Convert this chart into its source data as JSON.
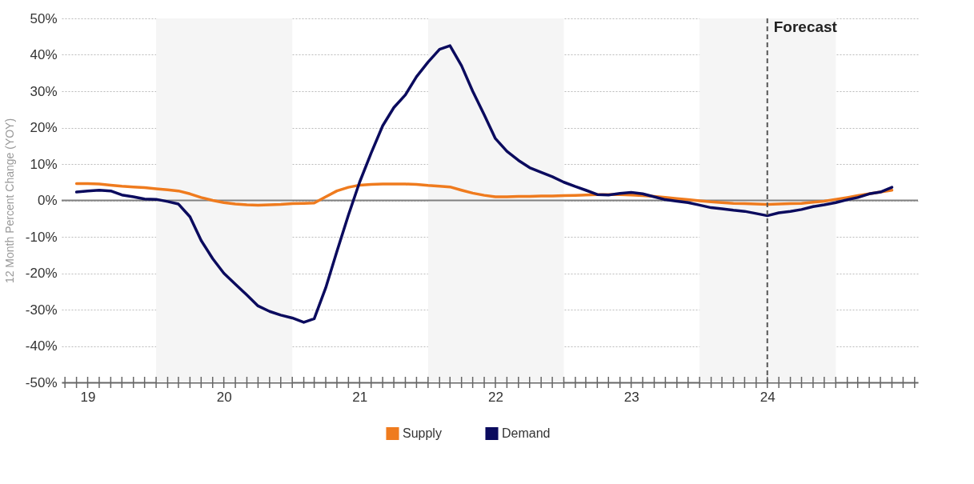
{
  "chart_data": {
    "type": "line",
    "ylabel": "12 Month Percent Change (YOY)",
    "x": [
      "2019-06",
      "2019-07",
      "2019-08",
      "2019-09",
      "2019-10",
      "2019-11",
      "2019-12",
      "2020-01",
      "2020-02",
      "2020-03",
      "2020-04",
      "2020-05",
      "2020-06",
      "2020-07",
      "2020-08",
      "2020-09",
      "2020-10",
      "2020-11",
      "2020-12",
      "2021-01",
      "2021-02",
      "2021-03",
      "2021-04",
      "2021-05",
      "2021-06",
      "2021-07",
      "2021-08",
      "2021-09",
      "2021-10",
      "2021-11",
      "2021-12",
      "2022-01",
      "2022-02",
      "2022-03",
      "2022-04",
      "2022-05",
      "2022-06",
      "2022-07",
      "2022-08",
      "2022-09",
      "2022-10",
      "2022-11",
      "2022-12",
      "2023-01",
      "2023-02",
      "2023-03",
      "2023-04",
      "2023-05",
      "2023-06",
      "2023-07",
      "2023-08",
      "2023-09",
      "2023-10",
      "2023-11",
      "2023-12",
      "2024-01",
      "2024-02",
      "2024-03",
      "2024-04",
      "2024-05",
      "2024-06",
      "2024-07",
      "2024-08",
      "2024-09",
      "2024-10",
      "2024-11",
      "2024-12",
      "2025-01",
      "2025-02",
      "2025-03",
      "2025-04",
      "2025-05",
      "2025-06"
    ],
    "series": [
      {
        "name": "Supply",
        "color": "#ef7b1e",
        "values": [
          4.6,
          4.6,
          4.5,
          4.2,
          3.9,
          3.7,
          3.5,
          3.2,
          2.9,
          2.6,
          1.8,
          0.8,
          0.0,
          -0.6,
          -1.0,
          -1.2,
          -1.3,
          -1.2,
          -1.1,
          -0.9,
          -0.8,
          -0.7,
          1.0,
          2.6,
          3.6,
          4.2,
          4.4,
          4.5,
          4.5,
          4.5,
          4.4,
          4.1,
          3.9,
          3.7,
          2.8,
          2.0,
          1.4,
          1.0,
          1.0,
          1.1,
          1.1,
          1.2,
          1.2,
          1.3,
          1.4,
          1.5,
          1.6,
          1.6,
          1.6,
          1.5,
          1.3,
          1.1,
          0.8,
          0.5,
          0.2,
          -0.1,
          -0.4,
          -0.6,
          -0.8,
          -0.9,
          -1.0,
          -1.1,
          -1.0,
          -0.9,
          -0.8,
          -0.5,
          -0.2,
          0.3,
          0.8,
          1.3,
          1.8,
          2.3,
          2.8
        ]
      },
      {
        "name": "Demand",
        "color": "#0b0b5e",
        "values": [
          2.3,
          2.6,
          2.8,
          2.6,
          1.5,
          1.0,
          0.4,
          0.3,
          -0.3,
          -1.0,
          -4.5,
          -11,
          -16,
          -20,
          -23,
          -26,
          -29,
          -30.5,
          -31.5,
          -32.3,
          -33.5,
          -32.5,
          -24,
          -14,
          -4,
          5,
          13,
          20.5,
          25.5,
          29,
          34,
          38,
          41.5,
          42.5,
          37,
          30,
          23.5,
          17,
          13.5,
          11,
          9,
          7.7,
          6.5,
          5,
          3.8,
          2.8,
          1.6,
          1.5,
          1.9,
          2.2,
          1.8,
          1.0,
          0.2,
          -0.2,
          -0.6,
          -1.3,
          -2.0,
          -2.3,
          -2.7,
          -3.0,
          -3.6,
          -4.2,
          -3.4,
          -3.0,
          -2.5,
          -1.7,
          -1.2,
          -0.6,
          0.2,
          0.8,
          1.8,
          2.3,
          3.6
        ]
      }
    ],
    "xlim": [
      "2019-04-22",
      "2025-08-10"
    ],
    "xticks": [
      {
        "value": "2019-05-01",
        "label": null
      },
      {
        "value": "2019-06-01",
        "label": null
      },
      {
        "value": "2019-07-01",
        "label": "19"
      },
      {
        "value": "2019-08-01",
        "label": null
      },
      {
        "value": "2019-09-01",
        "label": null
      },
      {
        "value": "2019-10-01",
        "label": null
      },
      {
        "value": "2019-11-01",
        "label": null
      },
      {
        "value": "2019-12-01",
        "label": null
      },
      {
        "value": "2020-01-01",
        "label": null
      },
      {
        "value": "2020-02-01",
        "label": null
      },
      {
        "value": "2020-03-01",
        "label": null
      },
      {
        "value": "2020-04-01",
        "label": null
      },
      {
        "value": "2020-05-01",
        "label": null
      },
      {
        "value": "2020-06-01",
        "label": null
      },
      {
        "value": "2020-07-01",
        "label": "20"
      },
      {
        "value": "2020-08-01",
        "label": null
      },
      {
        "value": "2020-09-01",
        "label": null
      },
      {
        "value": "2020-10-01",
        "label": null
      },
      {
        "value": "2020-11-01",
        "label": null
      },
      {
        "value": "2020-12-01",
        "label": null
      },
      {
        "value": "2021-01-01",
        "label": null
      },
      {
        "value": "2021-02-01",
        "label": null
      },
      {
        "value": "2021-03-01",
        "label": null
      },
      {
        "value": "2021-04-01",
        "label": null
      },
      {
        "value": "2021-05-01",
        "label": null
      },
      {
        "value": "2021-06-01",
        "label": null
      },
      {
        "value": "2021-07-01",
        "label": "21"
      },
      {
        "value": "2021-08-01",
        "label": null
      },
      {
        "value": "2021-09-01",
        "label": null
      },
      {
        "value": "2021-10-01",
        "label": null
      },
      {
        "value": "2021-11-01",
        "label": null
      },
      {
        "value": "2021-12-01",
        "label": null
      },
      {
        "value": "2022-01-01",
        "label": null
      },
      {
        "value": "2022-02-01",
        "label": null
      },
      {
        "value": "2022-03-01",
        "label": null
      },
      {
        "value": "2022-04-01",
        "label": null
      },
      {
        "value": "2022-05-01",
        "label": null
      },
      {
        "value": "2022-06-01",
        "label": null
      },
      {
        "value": "2022-07-01",
        "label": "22"
      },
      {
        "value": "2022-08-01",
        "label": null
      },
      {
        "value": "2022-09-01",
        "label": null
      },
      {
        "value": "2022-10-01",
        "label": null
      },
      {
        "value": "2022-11-01",
        "label": null
      },
      {
        "value": "2022-12-01",
        "label": null
      },
      {
        "value": "2023-01-01",
        "label": null
      },
      {
        "value": "2023-02-01",
        "label": null
      },
      {
        "value": "2023-03-01",
        "label": null
      },
      {
        "value": "2023-04-01",
        "label": null
      },
      {
        "value": "2023-05-01",
        "label": null
      },
      {
        "value": "2023-06-01",
        "label": null
      },
      {
        "value": "2023-07-01",
        "label": "23"
      },
      {
        "value": "2023-08-01",
        "label": null
      },
      {
        "value": "2023-09-01",
        "label": null
      },
      {
        "value": "2023-10-01",
        "label": null
      },
      {
        "value": "2023-11-01",
        "label": null
      },
      {
        "value": "2023-12-01",
        "label": null
      },
      {
        "value": "2024-01-01",
        "label": null
      },
      {
        "value": "2024-02-01",
        "label": null
      },
      {
        "value": "2024-03-01",
        "label": null
      },
      {
        "value": "2024-04-01",
        "label": null
      },
      {
        "value": "2024-05-01",
        "label": null
      },
      {
        "value": "2024-06-01",
        "label": null
      },
      {
        "value": "2024-07-01",
        "label": "24"
      },
      {
        "value": "2024-08-01",
        "label": null
      },
      {
        "value": "2024-09-01",
        "label": null
      },
      {
        "value": "2024-10-01",
        "label": null
      },
      {
        "value": "2024-11-01",
        "label": null
      },
      {
        "value": "2024-12-01",
        "label": null
      },
      {
        "value": "2025-01-01",
        "label": null
      },
      {
        "value": "2025-02-01",
        "label": null
      },
      {
        "value": "2025-03-01",
        "label": null
      },
      {
        "value": "2025-04-01",
        "label": null
      },
      {
        "value": "2025-05-01",
        "label": null
      },
      {
        "value": "2025-06-01",
        "label": null
      },
      {
        "value": "2025-07-01",
        "label": null
      },
      {
        "value": "2025-08-01",
        "label": null
      }
    ],
    "ylim": [
      -50,
      50
    ],
    "yticks": [
      {
        "value": -50,
        "label": "-50%"
      },
      {
        "value": -40,
        "label": "-40%"
      },
      {
        "value": -30,
        "label": "-30%"
      },
      {
        "value": -20,
        "label": "-20%"
      },
      {
        "value": -10,
        "label": "-10%"
      },
      {
        "value": 0,
        "label": "0%"
      },
      {
        "value": 10,
        "label": "10%"
      },
      {
        "value": 20,
        "label": "20%"
      },
      {
        "value": 30,
        "label": "30%"
      },
      {
        "value": 40,
        "label": "40%"
      },
      {
        "value": 50,
        "label": "50%"
      }
    ],
    "bands": [
      {
        "axis": "x",
        "from": "2020-01-01",
        "to": "2021-01-01",
        "color": "#f5f5f5"
      },
      {
        "axis": "x",
        "from": "2022-01-01",
        "to": "2023-01-01",
        "color": "#f5f5f5"
      },
      {
        "axis": "x",
        "from": "2024-01-01",
        "to": "2025-01-01",
        "color": "#f5f5f5"
      }
    ],
    "ref_lines": [
      {
        "axis": "y",
        "value": 0,
        "color": "#808080",
        "line_style": "solid"
      },
      {
        "axis": "x",
        "value": "2024-07-01",
        "label": "Forecast",
        "color": "#555555",
        "line_style": "dashed"
      }
    ],
    "grid": "y",
    "legend": "bottom",
    "marker": "none",
    "line_style": "solid"
  }
}
